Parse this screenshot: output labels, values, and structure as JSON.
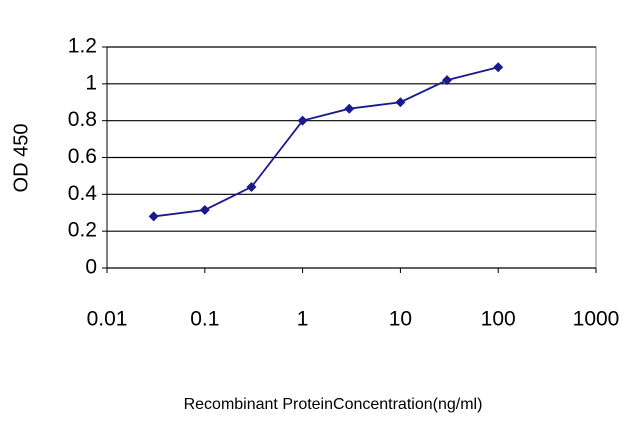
{
  "chart_data": {
    "type": "line",
    "x_label": "Recombinant ProteinConcentration(ng/ml)",
    "y_label": "OD 450",
    "x": [
      0.03,
      0.1,
      0.3,
      1,
      3,
      10,
      30,
      100
    ],
    "series": [
      {
        "name": "OD 450",
        "color": "#1a1a8c",
        "values": [
          0.28,
          0.315,
          0.44,
          0.8,
          0.865,
          0.9,
          1.02,
          1.09
        ]
      }
    ],
    "xlim": [
      0.01,
      1000
    ],
    "xticks": [
      0.01,
      0.1,
      1,
      10,
      100,
      1000
    ],
    "ylim": [
      0,
      1.2
    ],
    "yticks": [
      0,
      0.2,
      0.4,
      0.6,
      0.8,
      1,
      1.2
    ],
    "x_log": true,
    "grid": true
  }
}
